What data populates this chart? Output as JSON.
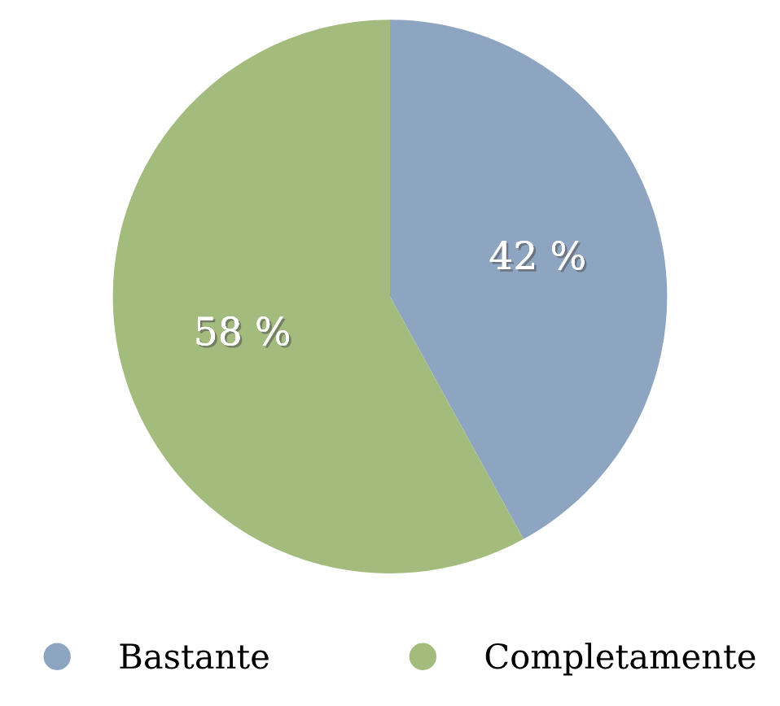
{
  "chart_data": {
    "type": "pie",
    "categories": [
      "Bastante",
      "Completamente"
    ],
    "values": [
      42,
      58
    ],
    "colors": [
      "#8ea5c2",
      "#a3bc7d"
    ],
    "value_labels": [
      "42 %",
      "58 %"
    ],
    "legend": "bottom"
  }
}
